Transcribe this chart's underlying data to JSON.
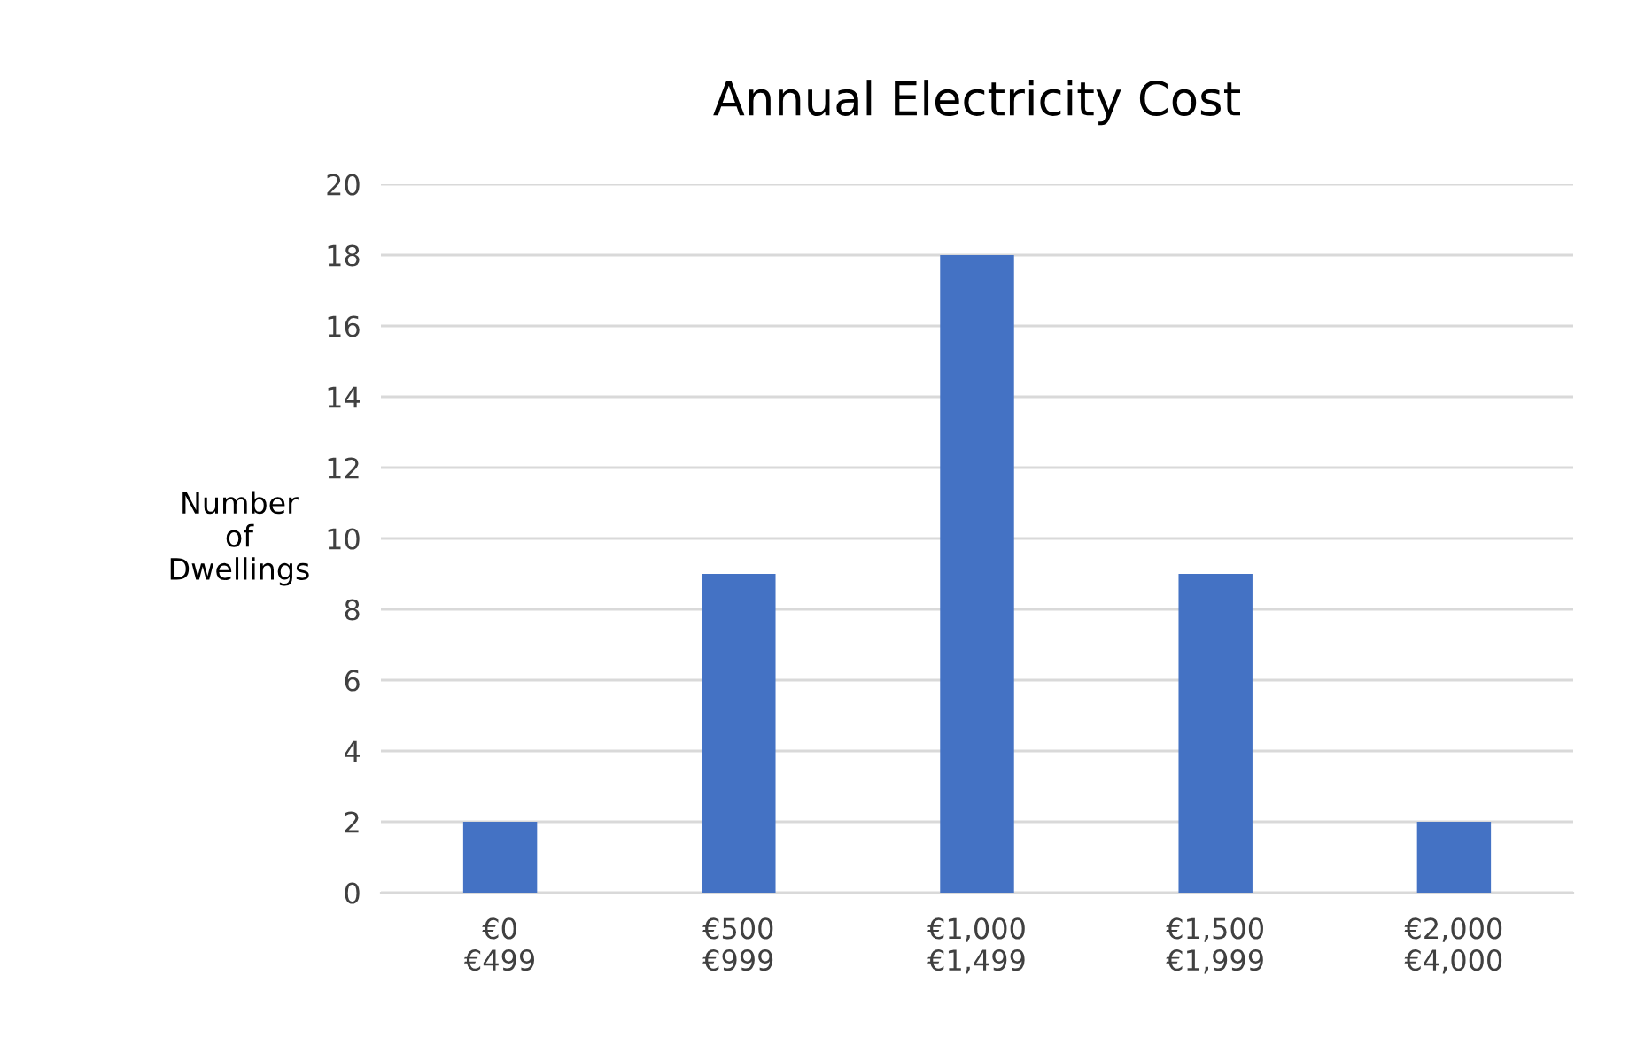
{
  "chart_data": {
    "type": "bar",
    "title": "Annual Electricity Cost",
    "ylabel": "Number\nof\nDwellings",
    "categories": [
      "€0\n€499",
      "€500\n€999",
      "€1,000\n€1,499",
      "€1,500\n€1,999",
      "€2,000\n€4,000"
    ],
    "values": [
      2,
      9,
      18,
      9,
      2
    ],
    "color": "#4472c4",
    "ylim": [
      0,
      20
    ],
    "yticks": [
      0,
      2,
      4,
      6,
      8,
      10,
      12,
      14,
      16,
      18,
      20
    ],
    "grid": "y"
  }
}
